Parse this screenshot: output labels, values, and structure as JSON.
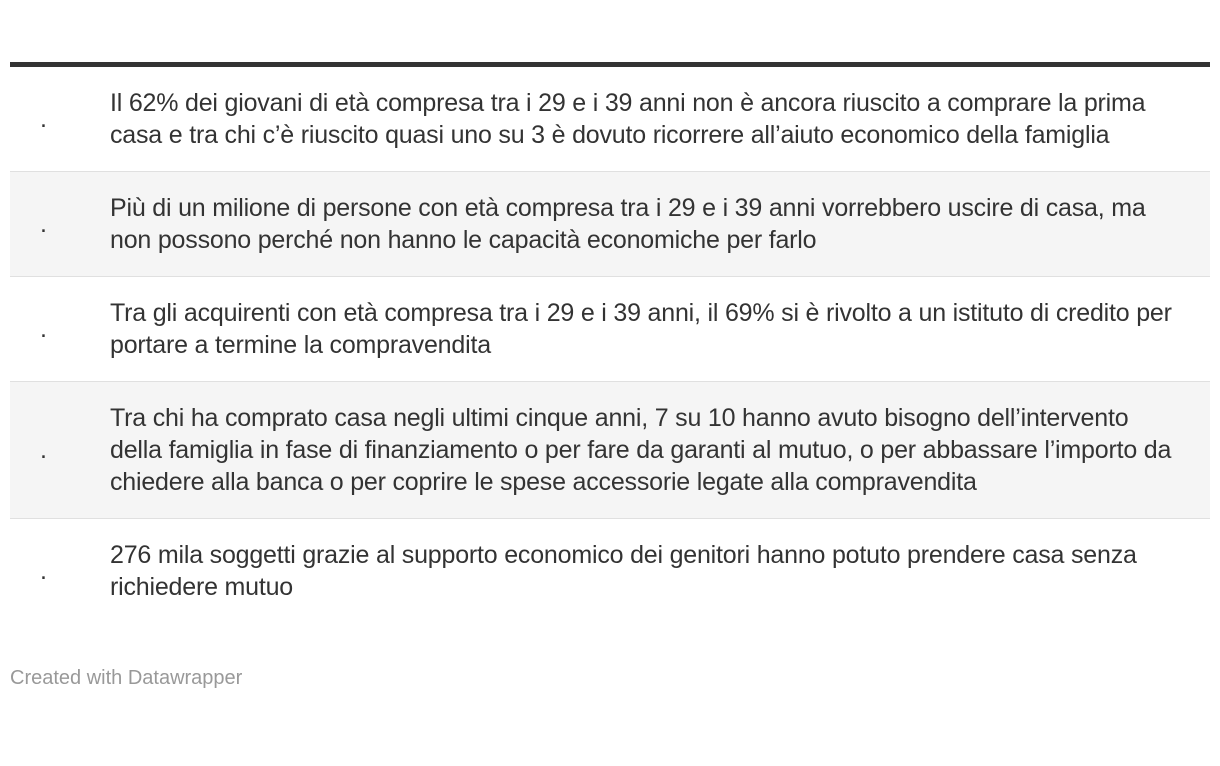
{
  "chart_data": {
    "type": "table",
    "title": "",
    "header_row_visible": false,
    "rows": [
      {
        "bullet": ".",
        "text": "Il 62% dei giovani di età compresa tra i 29 e i 39 anni non è ancora riuscito a comprare la prima casa e tra chi c’è riuscito quasi uno su 3 è dovuto ricorrere all’aiuto economico della famiglia"
      },
      {
        "bullet": ".",
        "text": "Più di un milione di persone con età compresa tra i 29 e i 39 anni vorrebbero uscire di casa, ma non possono perché non hanno le capacità economiche per farlo"
      },
      {
        "bullet": ".",
        "text": "Tra gli acquirenti con età compresa tra i 29 e i 39 anni, il 69% si è rivolto a un istituto di credito per portare a termine la compravendita"
      },
      {
        "bullet": ".",
        "text": "Tra chi ha comprato casa negli ultimi cinque anni, 7 su 10 hanno avuto bisogno dell’intervento della famiglia in fase di finanziamento o per fare da garanti al mutuo, o per abbassare l’importo da chiedere alla banca o per coprire le spese accessorie legate alla compravendita"
      },
      {
        "bullet": ".",
        "text": "276 mila soggetti grazie al supporto economico dei genitori hanno potuto prendere casa senza richiedere mutuo"
      }
    ],
    "layout": {
      "striped_row_indices": [
        1,
        3
      ],
      "legend_position": "none",
      "grid": "row-borders"
    }
  },
  "colors": {
    "top_rule": "#333333",
    "stripe": "#f5f5f5",
    "row_border": "#e0e0e0",
    "text": "#333333",
    "footer_text": "#999999"
  },
  "footer": {
    "attribution": "Created with Datawrapper"
  }
}
